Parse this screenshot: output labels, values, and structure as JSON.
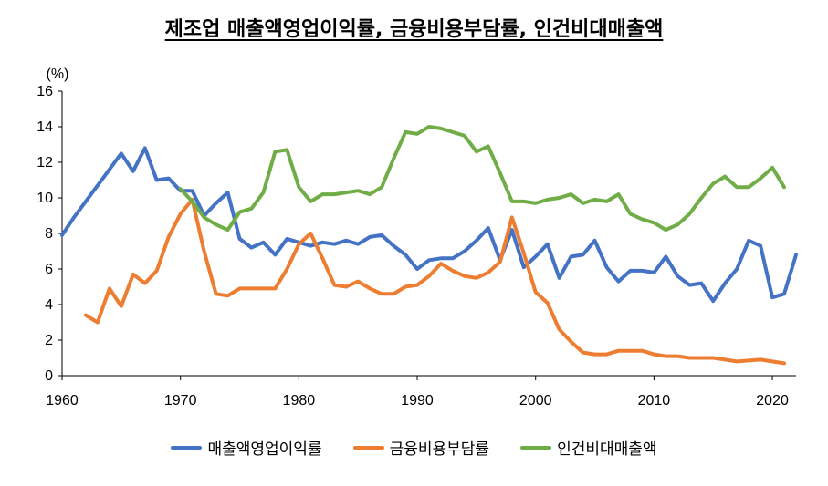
{
  "chart_data": {
    "type": "line",
    "title": "제조업  매출액영업이익률, 금융비용부담률, 인건비대매출액",
    "ylabel": "(%)",
    "xlim": [
      1960,
      2022
    ],
    "ylim": [
      0,
      16
    ],
    "xticks": [
      1960,
      1970,
      1980,
      1990,
      2000,
      2010,
      2020
    ],
    "yticks": [
      0,
      2,
      4,
      6,
      8,
      10,
      12,
      14,
      16
    ],
    "grid": false,
    "legend_position": "bottom",
    "series": [
      {
        "name": "매출액영업이익률",
        "color": "#4472C4",
        "points": [
          [
            1960,
            7.9
          ],
          [
            1961,
            8.9
          ],
          [
            1962,
            9.8
          ],
          [
            1963,
            10.7
          ],
          [
            1964,
            11.6
          ],
          [
            1965,
            12.5
          ],
          [
            1966,
            11.5
          ],
          [
            1967,
            12.8
          ],
          [
            1968,
            11.0
          ],
          [
            1969,
            11.1
          ],
          [
            1970,
            10.4
          ],
          [
            1971,
            10.4
          ],
          [
            1972,
            9.0
          ],
          [
            1973,
            9.7
          ],
          [
            1974,
            10.3
          ],
          [
            1975,
            7.7
          ],
          [
            1976,
            7.2
          ],
          [
            1977,
            7.5
          ],
          [
            1978,
            6.8
          ],
          [
            1979,
            7.7
          ],
          [
            1980,
            7.5
          ],
          [
            1981,
            7.3
          ],
          [
            1982,
            7.5
          ],
          [
            1983,
            7.4
          ],
          [
            1984,
            7.6
          ],
          [
            1985,
            7.4
          ],
          [
            1986,
            7.8
          ],
          [
            1987,
            7.9
          ],
          [
            1988,
            7.3
          ],
          [
            1989,
            6.8
          ],
          [
            1990,
            6.0
          ],
          [
            1991,
            6.5
          ],
          [
            1992,
            6.6
          ],
          [
            1993,
            6.6
          ],
          [
            1994,
            7.0
          ],
          [
            1995,
            7.6
          ],
          [
            1996,
            8.3
          ],
          [
            1997,
            6.5
          ],
          [
            1998,
            8.2
          ],
          [
            1999,
            6.1
          ],
          [
            2000,
            6.7
          ],
          [
            2001,
            7.4
          ],
          [
            2002,
            5.5
          ],
          [
            2003,
            6.7
          ],
          [
            2004,
            6.8
          ],
          [
            2005,
            7.6
          ],
          [
            2006,
            6.1
          ],
          [
            2007,
            5.3
          ],
          [
            2008,
            5.9
          ],
          [
            2009,
            5.9
          ],
          [
            2010,
            5.8
          ],
          [
            2011,
            6.7
          ],
          [
            2012,
            5.6
          ],
          [
            2013,
            5.1
          ],
          [
            2014,
            5.2
          ],
          [
            2015,
            4.2
          ],
          [
            2016,
            5.2
          ],
          [
            2017,
            6.0
          ],
          [
            2018,
            7.6
          ],
          [
            2019,
            7.3
          ],
          [
            2020,
            4.4
          ],
          [
            2021,
            4.6
          ],
          [
            2022,
            6.8
          ]
        ]
      },
      {
        "name": "금융비용부담률",
        "color": "#ED7D31",
        "points": [
          [
            1962,
            3.4
          ],
          [
            1963,
            3.0
          ],
          [
            1964,
            4.9
          ],
          [
            1965,
            3.9
          ],
          [
            1966,
            5.7
          ],
          [
            1967,
            5.2
          ],
          [
            1968,
            5.9
          ],
          [
            1969,
            7.8
          ],
          [
            1970,
            9.1
          ],
          [
            1971,
            9.9
          ],
          [
            1972,
            7.0
          ],
          [
            1973,
            4.6
          ],
          [
            1974,
            4.5
          ],
          [
            1975,
            4.9
          ],
          [
            1976,
            4.9
          ],
          [
            1977,
            4.9
          ],
          [
            1978,
            4.9
          ],
          [
            1979,
            6.0
          ],
          [
            1980,
            7.4
          ],
          [
            1981,
            8.0
          ],
          [
            1982,
            6.6
          ],
          [
            1983,
            5.1
          ],
          [
            1984,
            5.0
          ],
          [
            1985,
            5.3
          ],
          [
            1986,
            4.9
          ],
          [
            1987,
            4.6
          ],
          [
            1988,
            4.6
          ],
          [
            1989,
            5.0
          ],
          [
            1990,
            5.1
          ],
          [
            1991,
            5.6
          ],
          [
            1992,
            6.3
          ],
          [
            1993,
            5.9
          ],
          [
            1994,
            5.6
          ],
          [
            1995,
            5.5
          ],
          [
            1996,
            5.8
          ],
          [
            1997,
            6.4
          ],
          [
            1998,
            8.9
          ],
          [
            1999,
            6.9
          ],
          [
            2000,
            4.7
          ],
          [
            2001,
            4.1
          ],
          [
            2002,
            2.6
          ],
          [
            2003,
            1.9
          ],
          [
            2004,
            1.3
          ],
          [
            2005,
            1.2
          ],
          [
            2006,
            1.2
          ],
          [
            2007,
            1.4
          ],
          [
            2008,
            1.4
          ],
          [
            2009,
            1.4
          ],
          [
            2010,
            1.2
          ],
          [
            2011,
            1.1
          ],
          [
            2012,
            1.1
          ],
          [
            2013,
            1.0
          ],
          [
            2014,
            1.0
          ],
          [
            2015,
            1.0
          ],
          [
            2016,
            0.9
          ],
          [
            2017,
            0.8
          ],
          [
            2018,
            0.85
          ],
          [
            2019,
            0.9
          ],
          [
            2020,
            0.8
          ],
          [
            2021,
            0.7
          ]
        ]
      },
      {
        "name": "인건비대매출액",
        "color": "#70AD47",
        "points": [
          [
            1970,
            10.5
          ],
          [
            1971,
            9.8
          ],
          [
            1972,
            8.9
          ],
          [
            1973,
            8.5
          ],
          [
            1974,
            8.2
          ],
          [
            1975,
            9.2
          ],
          [
            1976,
            9.4
          ],
          [
            1977,
            10.3
          ],
          [
            1978,
            12.6
          ],
          [
            1979,
            12.7
          ],
          [
            1980,
            10.6
          ],
          [
            1981,
            9.8
          ],
          [
            1982,
            10.2
          ],
          [
            1983,
            10.2
          ],
          [
            1984,
            10.3
          ],
          [
            1985,
            10.4
          ],
          [
            1986,
            10.2
          ],
          [
            1987,
            10.6
          ],
          [
            1988,
            12.2
          ],
          [
            1989,
            13.7
          ],
          [
            1990,
            13.6
          ],
          [
            1991,
            14.0
          ],
          [
            1992,
            13.9
          ],
          [
            1993,
            13.7
          ],
          [
            1994,
            13.5
          ],
          [
            1995,
            12.6
          ],
          [
            1996,
            12.9
          ],
          [
            1997,
            11.4
          ],
          [
            1998,
            9.8
          ],
          [
            1999,
            9.8
          ],
          [
            2000,
            9.7
          ],
          [
            2001,
            9.9
          ],
          [
            2002,
            10.0
          ],
          [
            2003,
            10.2
          ],
          [
            2004,
            9.7
          ],
          [
            2005,
            9.9
          ],
          [
            2006,
            9.8
          ],
          [
            2007,
            10.2
          ],
          [
            2008,
            9.1
          ],
          [
            2009,
            8.8
          ],
          [
            2010,
            8.6
          ],
          [
            2011,
            8.2
          ],
          [
            2012,
            8.5
          ],
          [
            2013,
            9.1
          ],
          [
            2014,
            10.0
          ],
          [
            2015,
            10.8
          ],
          [
            2016,
            11.2
          ],
          [
            2017,
            10.6
          ],
          [
            2018,
            10.6
          ],
          [
            2019,
            11.1
          ],
          [
            2020,
            11.7
          ],
          [
            2021,
            10.6
          ]
        ]
      }
    ]
  }
}
